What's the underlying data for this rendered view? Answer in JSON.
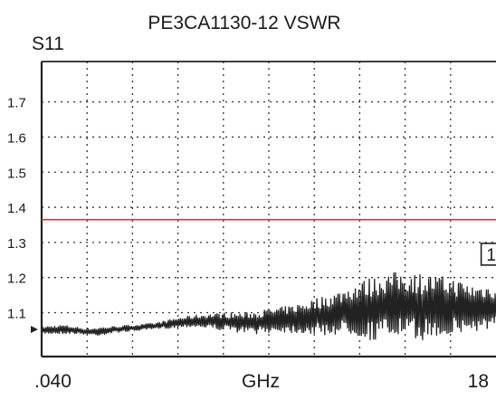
{
  "chart_data": {
    "type": "line",
    "title": "PE3CA1130-12 VSWR",
    "ylabel": "S11",
    "xlabel": "GHz",
    "x_start_label": ".040",
    "x_end_label": "18",
    "x_range": [
      0.04,
      18
    ],
    "ylim": [
      0.975,
      1.815
    ],
    "yticks": [
      1.1,
      1.2,
      1.3,
      1.4,
      1.5,
      1.6,
      1.7
    ],
    "ytick_labels": [
      "1.1",
      "1.2",
      "1.3",
      "1.4",
      "1.5",
      "1.6",
      "1.7"
    ],
    "grid": true,
    "limit_line": {
      "y": 1.365,
      "color": "#e03030"
    },
    "marker": {
      "label": "1",
      "x": 17.7,
      "y": 1.22
    },
    "series": [
      {
        "color": "#222222",
        "points": [
          [
            0.04,
            1.06
          ],
          [
            0.45,
            1.04
          ],
          [
            0.9,
            1.065
          ],
          [
            1.35,
            1.04
          ],
          [
            1.8,
            1.055
          ],
          [
            2.25,
            1.035
          ],
          [
            2.7,
            1.06
          ],
          [
            3.15,
            1.045
          ],
          [
            3.6,
            1.065
          ],
          [
            4.05,
            1.05
          ],
          [
            4.5,
            1.07
          ],
          [
            4.95,
            1.055
          ],
          [
            5.4,
            1.085
          ],
          [
            5.85,
            1.06
          ],
          [
            6.3,
            1.095
          ],
          [
            6.75,
            1.055
          ],
          [
            7.2,
            1.1
          ],
          [
            7.65,
            1.045
          ],
          [
            8.1,
            1.1
          ],
          [
            8.55,
            1.04
          ],
          [
            9.0,
            1.11
          ],
          [
            9.45,
            1.045
          ],
          [
            9.9,
            1.12
          ],
          [
            10.35,
            1.04
          ],
          [
            10.8,
            1.14
          ],
          [
            11.25,
            1.035
          ],
          [
            11.7,
            1.16
          ],
          [
            12.15,
            1.04
          ],
          [
            12.6,
            1.19
          ],
          [
            13.05,
            1.02
          ],
          [
            13.5,
            1.21
          ],
          [
            13.95,
            1.03
          ],
          [
            14.4,
            1.22
          ],
          [
            14.85,
            1.02
          ],
          [
            15.3,
            1.21
          ],
          [
            15.75,
            1.03
          ],
          [
            16.2,
            1.2
          ],
          [
            16.65,
            1.04
          ],
          [
            17.1,
            1.18
          ],
          [
            17.55,
            1.05
          ],
          [
            18.0,
            1.12
          ]
        ]
      }
    ]
  }
}
